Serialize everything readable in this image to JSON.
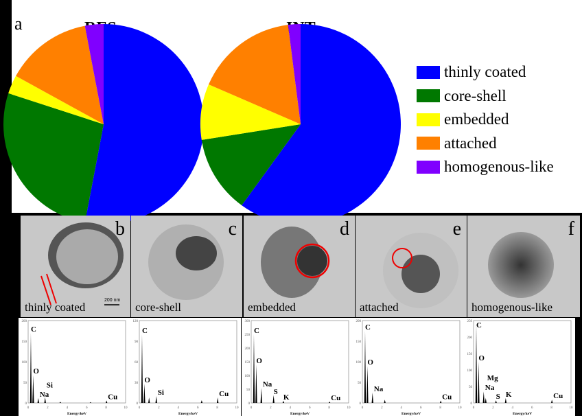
{
  "panel_label_a": "a",
  "legend": [
    {
      "label": "thinly coated",
      "color": "#0000ff"
    },
    {
      "label": "core-shell",
      "color": "#007800"
    },
    {
      "label": "embedded",
      "color": "#ffff00"
    },
    {
      "label": "attached",
      "color": "#ff8000"
    },
    {
      "label": "homogenous-like",
      "color": "#8000ff"
    }
  ],
  "chart_data": [
    {
      "type": "pie",
      "title": "RES",
      "categories": [
        "thinly coated",
        "core-shell",
        "embedded",
        "attached",
        "homogenous-like"
      ],
      "values": [
        53,
        27,
        3,
        14,
        3
      ],
      "unit": "%"
    },
    {
      "type": "pie",
      "title": "INT",
      "categories": [
        "thinly coated",
        "core-shell",
        "embedded",
        "attached",
        "homogenous-like"
      ],
      "values": [
        60,
        12.5,
        9,
        16.5,
        2
      ],
      "unit": "%"
    },
    {
      "type": "line",
      "xlabel": "Energy/keV",
      "xlim": [
        0,
        10
      ],
      "ylim": [
        0,
        200
      ],
      "yticks": [
        0,
        50,
        100,
        150,
        200
      ],
      "peaks": [
        {
          "x": 0.28,
          "y": 170,
          "label": "C"
        },
        {
          "x": 0.52,
          "y": 68,
          "label": "O"
        },
        {
          "x": 1.04,
          "y": 12,
          "label": "Na"
        },
        {
          "x": 1.74,
          "y": 14,
          "label": "Si"
        },
        {
          "x": 3.3,
          "y": 3
        },
        {
          "x": 6.4,
          "y": 2
        },
        {
          "x": 8.04,
          "y": 6,
          "label": "Cu"
        }
      ]
    },
    {
      "type": "line",
      "xlabel": "Energy/keV",
      "xlim": [
        0,
        10
      ],
      "ylim": [
        0,
        120
      ],
      "yticks": [
        0,
        30,
        60,
        90,
        120
      ],
      "peaks": [
        {
          "x": 0.28,
          "y": 100,
          "label": "C"
        },
        {
          "x": 0.52,
          "y": 28,
          "label": "O"
        },
        {
          "x": 1.0,
          "y": 8
        },
        {
          "x": 1.74,
          "y": 10,
          "label": "Si"
        },
        {
          "x": 6.4,
          "y": 4
        },
        {
          "x": 8.04,
          "y": 8,
          "label": "Cu"
        }
      ]
    },
    {
      "type": "line",
      "xlabel": "Energy/keV",
      "xlim": [
        0,
        10
      ],
      "ylim": [
        0,
        300
      ],
      "yticks": [
        0,
        50,
        100,
        150,
        200,
        250,
        300
      ],
      "peaks": [
        {
          "x": 0.28,
          "y": 250,
          "label": "C"
        },
        {
          "x": 0.52,
          "y": 140,
          "label": "O"
        },
        {
          "x": 1.04,
          "y": 55,
          "label": "Na"
        },
        {
          "x": 2.3,
          "y": 28,
          "label": "S"
        },
        {
          "x": 3.3,
          "y": 8,
          "label": "K"
        },
        {
          "x": 8.04,
          "y": 5,
          "label": "Cu"
        }
      ]
    },
    {
      "type": "line",
      "xlabel": "Energy/keV",
      "xlim": [
        0,
        10
      ],
      "ylim": [
        0,
        200
      ],
      "yticks": [
        0,
        50,
        100,
        150,
        200
      ],
      "peaks": [
        {
          "x": 0.28,
          "y": 175,
          "label": "C"
        },
        {
          "x": 0.52,
          "y": 90,
          "label": "O"
        },
        {
          "x": 1.04,
          "y": 25,
          "label": "Na"
        },
        {
          "x": 2.3,
          "y": 8
        },
        {
          "x": 8.04,
          "y": 6,
          "label": "Cu"
        }
      ]
    },
    {
      "type": "line",
      "xlabel": "Energy/keV",
      "xlim": [
        0,
        10
      ],
      "ylim": [
        0,
        250
      ],
      "yticks": [
        0,
        50,
        100,
        150,
        200,
        250
      ],
      "peaks": [
        {
          "x": 0.28,
          "y": 240,
          "label": "C"
        },
        {
          "x": 0.52,
          "y": 125,
          "label": "O"
        },
        {
          "x": 1.04,
          "y": 35,
          "label": "Na"
        },
        {
          "x": 1.25,
          "y": 15,
          "label": "Mg"
        },
        {
          "x": 2.3,
          "y": 8,
          "label": "S"
        },
        {
          "x": 3.3,
          "y": 15,
          "label": "K"
        },
        {
          "x": 8.04,
          "y": 10,
          "label": "Cu"
        }
      ]
    }
  ],
  "tem_panels": [
    {
      "letter": "b",
      "caption": "thinly coated",
      "scale": "200 nm"
    },
    {
      "letter": "c",
      "caption": "core-shell"
    },
    {
      "letter": "d",
      "caption": "embedded"
    },
    {
      "letter": "e",
      "caption": "attached"
    },
    {
      "letter": "f",
      "caption": "homogenous-like"
    }
  ]
}
